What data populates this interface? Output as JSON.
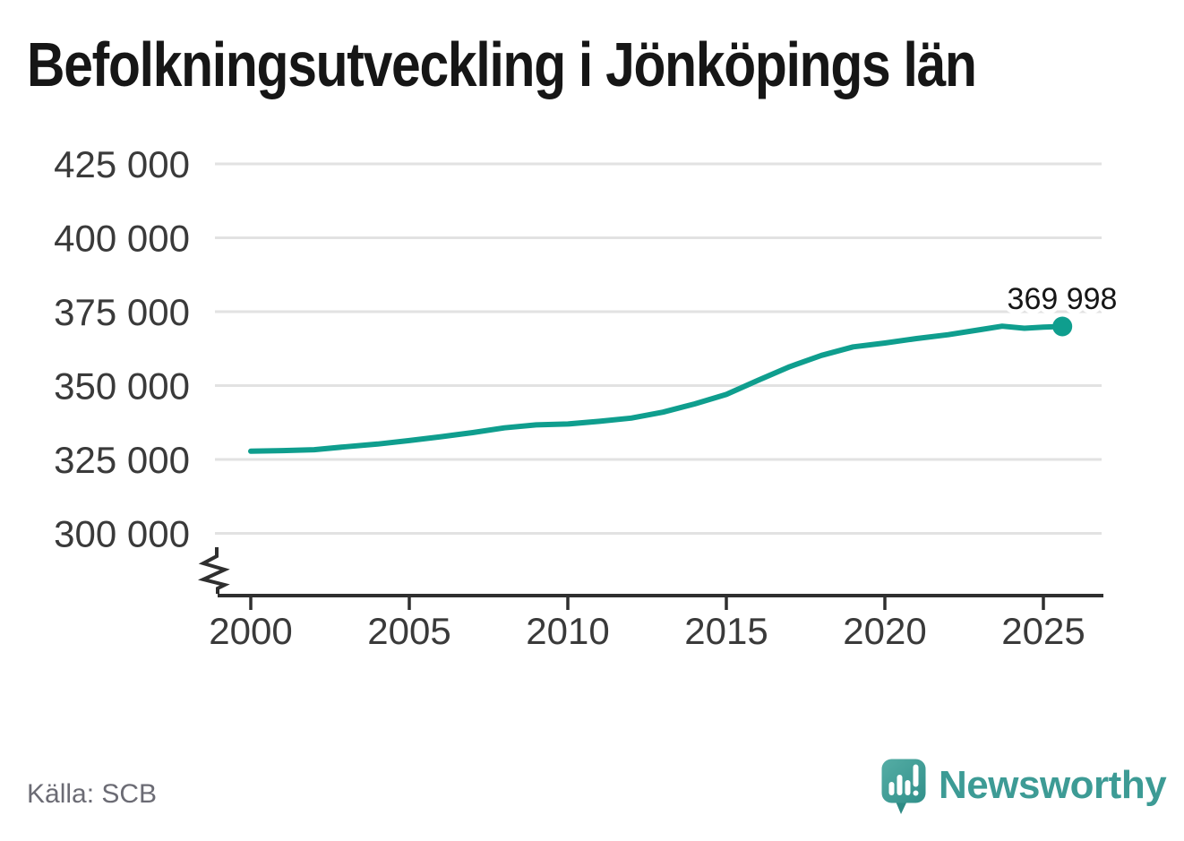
{
  "title": "Befolkningsutveckling i Jönköpings län",
  "footer": {
    "source": "Källa: SCB",
    "brand": "Newsworthy"
  },
  "colors": {
    "line": "#0f9e8e",
    "grid": "#e2e2e2",
    "axis": "#2f2f2f",
    "tick_text": "#3a3a3a",
    "title_text": "#161616",
    "source_text": "#6b6b74",
    "brand_teal": "#3d9b95"
  },
  "chart_data": {
    "type": "line",
    "title": "Befolkningsutveckling i Jönköpings län",
    "xlabel": "",
    "ylabel": "",
    "grid": true,
    "legend": false,
    "y_axis_break": true,
    "x_range": [
      1999,
      2026.9
    ],
    "ylim": [
      300000,
      425000
    ],
    "x_ticks": [
      {
        "value": 2000,
        "label": "2000"
      },
      {
        "value": 2005,
        "label": "2005"
      },
      {
        "value": 2010,
        "label": "2010"
      },
      {
        "value": 2015,
        "label": "2015"
      },
      {
        "value": 2020,
        "label": "2020"
      },
      {
        "value": 2025,
        "label": "2025"
      }
    ],
    "y_ticks": [
      {
        "value": 300000,
        "label": "300 000"
      },
      {
        "value": 325000,
        "label": "325 000"
      },
      {
        "value": 350000,
        "label": "350 000"
      },
      {
        "value": 375000,
        "label": "375 000"
      },
      {
        "value": 400000,
        "label": "400 000"
      },
      {
        "value": 425000,
        "label": "425 000"
      }
    ],
    "series": [
      {
        "points": [
          [
            2000,
            327800
          ],
          [
            2001,
            328000
          ],
          [
            2002,
            328300
          ],
          [
            2003,
            329300
          ],
          [
            2004,
            330200
          ],
          [
            2005,
            331400
          ],
          [
            2006,
            332700
          ],
          [
            2007,
            334100
          ],
          [
            2008,
            335700
          ],
          [
            2009,
            336700
          ],
          [
            2010,
            337000
          ],
          [
            2011,
            337900
          ],
          [
            2012,
            339000
          ],
          [
            2013,
            341000
          ],
          [
            2014,
            343800
          ],
          [
            2015,
            347000
          ],
          [
            2016,
            351800
          ],
          [
            2017,
            356400
          ],
          [
            2018,
            360200
          ],
          [
            2019,
            363100
          ],
          [
            2020,
            364400
          ],
          [
            2021,
            365900
          ],
          [
            2022,
            367200
          ],
          [
            2023,
            368900
          ],
          [
            2023.7,
            370100
          ],
          [
            2024.4,
            369400
          ],
          [
            2025,
            369800
          ],
          [
            2025.6,
            369998
          ]
        ]
      }
    ],
    "end_label": "369 998",
    "end_value": 369998
  }
}
